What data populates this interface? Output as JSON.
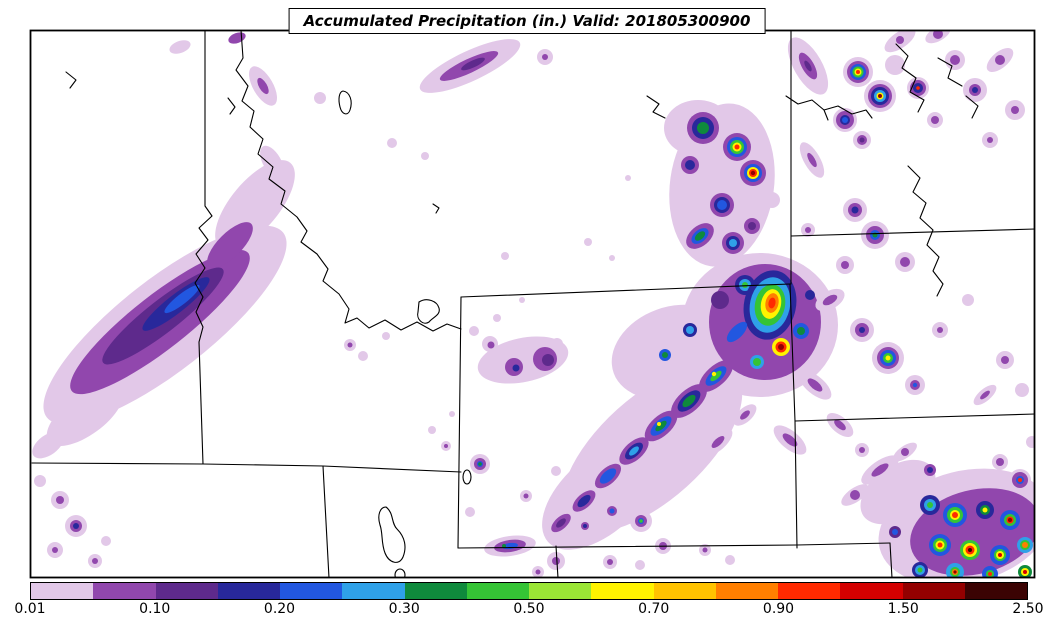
{
  "title": {
    "text": "Accumulated Precipitation (in.) Valid: 201805300900"
  },
  "colorbar": {
    "ticks": [
      "0.01",
      "0.10",
      "0.20",
      "0.30",
      "0.50",
      "0.70",
      "0.90",
      "1.50",
      "2.50"
    ],
    "colors": [
      "#E2C8E8",
      "#9147AD",
      "#5E2A8C",
      "#28289B",
      "#2257E0",
      "#2FA1E8",
      "#0F8A3C",
      "#35C435",
      "#9BE635",
      "#FFF300",
      "#FFC300",
      "#FF7F00",
      "#FF2A00",
      "#D40000",
      "#930000",
      "#3B0303"
    ]
  },
  "map": {
    "background": "#FFFFFF",
    "frame_color": "#000000",
    "state_line_color": "#000000"
  }
}
